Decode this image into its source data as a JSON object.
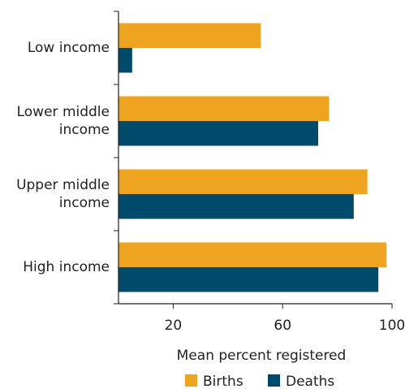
{
  "chart_data": {
    "type": "bar",
    "orientation": "horizontal",
    "categories": [
      "Low income",
      "Lower middle income",
      "Upper middle income",
      "High income"
    ],
    "series": [
      {
        "name": "Births",
        "color": "#eea321",
        "values": [
          52,
          77,
          91,
          98
        ]
      },
      {
        "name": "Deaths",
        "color": "#004a6b",
        "values": [
          5,
          73,
          86,
          95
        ]
      }
    ],
    "xlabel": "Mean percent registered",
    "xlim": [
      0,
      100
    ],
    "xticks": [
      20,
      60,
      100
    ],
    "grid": false,
    "legend": "bottom"
  }
}
